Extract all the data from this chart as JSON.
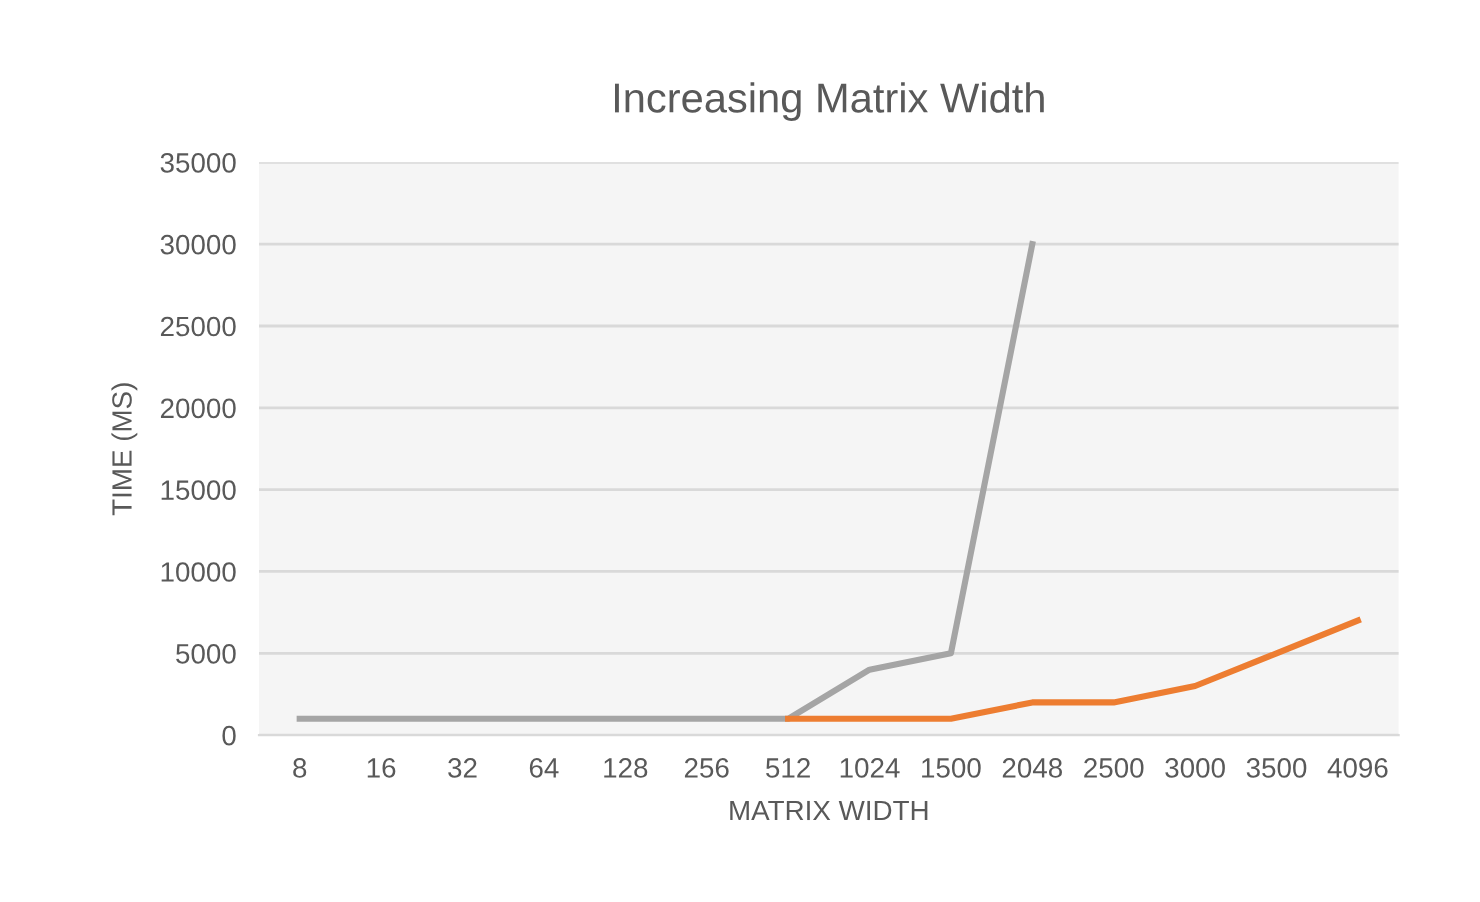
{
  "chart_data": {
    "type": "line",
    "title": "Increasing Matrix Width",
    "xlabel": "MATRIX WIDTH",
    "ylabel": "TIME (MS)",
    "categories": [
      "8",
      "16",
      "32",
      "64",
      "128",
      "256",
      "512",
      "1024",
      "1500",
      "2048",
      "2500",
      "3000",
      "3500",
      "4096"
    ],
    "series": [
      {
        "color": "#a5a5a5",
        "values": [
          1000,
          1000,
          1000,
          1000,
          1000,
          1000,
          1000,
          4000,
          5000,
          30000,
          null,
          null,
          null,
          null
        ]
      },
      {
        "color": "#ed7d31",
        "values": [
          null,
          null,
          null,
          null,
          null,
          null,
          1000,
          1000,
          1000,
          2000,
          2000,
          3000,
          5000,
          7000
        ]
      }
    ],
    "ylim": [
      0,
      35000
    ],
    "yticks": [
      0,
      5000,
      10000,
      15000,
      20000,
      25000,
      30000,
      35000
    ],
    "grid": "y",
    "legend": false,
    "marker": "none",
    "line_style": "solid"
  }
}
